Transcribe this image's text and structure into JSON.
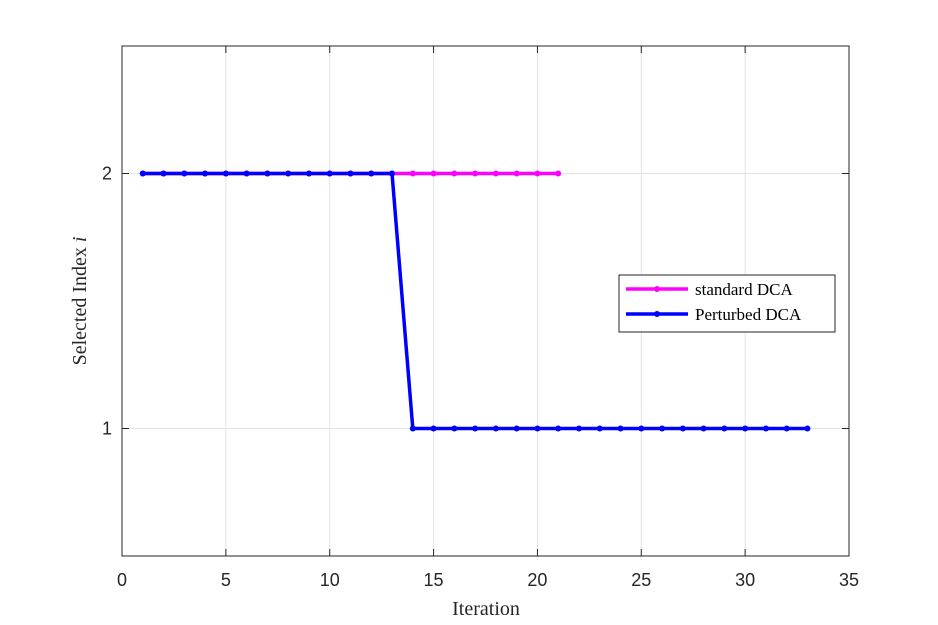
{
  "chart_data": {
    "type": "line",
    "title": "",
    "xlabel": "Iteration",
    "ylabel": "Selected Index",
    "ylabel_var": "i",
    "xlim": [
      0,
      35
    ],
    "ylim": [
      0.5,
      2.5
    ],
    "xticks": [
      0,
      5,
      10,
      15,
      20,
      25,
      30,
      35
    ],
    "yticks": [
      1,
      2
    ],
    "grid": true,
    "legend_position": "right",
    "series": [
      {
        "name": "standard DCA",
        "color": "#ff00ff",
        "x": [
          1,
          2,
          3,
          4,
          5,
          6,
          7,
          8,
          9,
          10,
          11,
          12,
          13,
          14,
          15,
          16,
          17,
          18,
          19,
          20,
          21
        ],
        "y": [
          2,
          2,
          2,
          2,
          2,
          2,
          2,
          2,
          2,
          2,
          2,
          2,
          2,
          2,
          2,
          2,
          2,
          2,
          2,
          2,
          2
        ]
      },
      {
        "name": "Perturbed DCA",
        "color": "#0000ff",
        "x": [
          1,
          2,
          3,
          4,
          5,
          6,
          7,
          8,
          9,
          10,
          11,
          12,
          13,
          14,
          15,
          16,
          17,
          18,
          19,
          20,
          21,
          22,
          23,
          24,
          25,
          26,
          27,
          28,
          29,
          30,
          31,
          32,
          33
        ],
        "y": [
          2,
          2,
          2,
          2,
          2,
          2,
          2,
          2,
          2,
          2,
          2,
          2,
          2,
          1,
          1,
          1,
          1,
          1,
          1,
          1,
          1,
          1,
          1,
          1,
          1,
          1,
          1,
          1,
          1,
          1,
          1,
          1,
          1
        ]
      }
    ]
  }
}
